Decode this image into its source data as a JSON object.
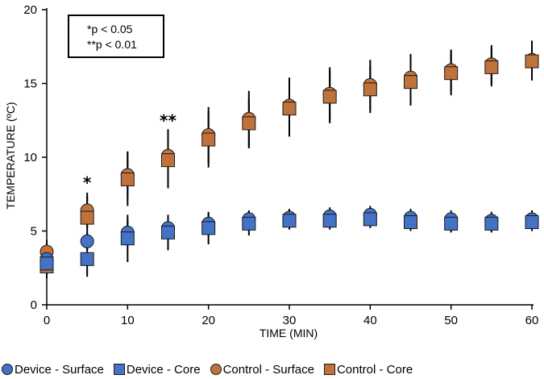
{
  "chart_data": {
    "type": "scatter",
    "xlabel": "TIME (MIN)",
    "ylabel": "TEMPERATURE (ºC)",
    "xlim": [
      0,
      60
    ],
    "ylim": [
      0,
      20
    ],
    "x_ticks": [
      "0",
      "10",
      "20",
      "30",
      "40",
      "50",
      "60"
    ],
    "y_ticks": [
      "0",
      "5",
      "10",
      "15",
      "20"
    ],
    "grid": false,
    "legend_position": "bottom",
    "x": [
      0,
      5,
      10,
      15,
      20,
      25,
      30,
      35,
      40,
      45,
      50,
      55,
      60
    ],
    "series": [
      {
        "name": "Device - Surface",
        "marker": "circle",
        "color": "#4472C4",
        "values": [
          3.1,
          4.3,
          4.9,
          5.2,
          5.5,
          5.8,
          5.9,
          6.0,
          6.1,
          5.9,
          5.8,
          5.7,
          5.8
        ],
        "error": [
          0.5,
          0.6,
          0.9,
          0.8,
          0.7,
          0.6,
          0.6,
          0.6,
          0.6,
          0.6,
          0.6,
          0.6,
          0.6
        ]
      },
      {
        "name": "Device - Core",
        "marker": "square",
        "color": "#4472C4",
        "values": [
          2.8,
          3.1,
          4.5,
          4.9,
          5.2,
          5.5,
          5.7,
          5.7,
          5.8,
          5.6,
          5.5,
          5.5,
          5.6
        ],
        "error": [
          0.7,
          1.2,
          1.6,
          1.2,
          1.1,
          0.8,
          0.6,
          0.6,
          0.6,
          0.6,
          0.6,
          0.6,
          0.6
        ]
      },
      {
        "name": "Control - Surface",
        "marker": "circle",
        "color": "#C0723D",
        "values": [
          3.6,
          6.4,
          8.8,
          10.1,
          11.5,
          12.6,
          13.5,
          14.3,
          14.9,
          15.4,
          15.9,
          16.3,
          16.6
        ],
        "error": [
          0.8,
          1.2,
          1.6,
          1.8,
          1.9,
          1.9,
          1.9,
          1.8,
          1.7,
          1.6,
          1.4,
          1.3,
          1.3
        ]
      },
      {
        "name": "Control - Core",
        "marker": "square",
        "color": "#C0723D",
        "values": [
          2.6,
          5.9,
          8.5,
          9.8,
          11.2,
          12.3,
          13.3,
          14.1,
          14.6,
          15.1,
          15.7,
          16.1,
          16.5
        ],
        "error": [
          0.8,
          1.5,
          1.8,
          1.9,
          1.9,
          1.7,
          1.9,
          1.8,
          1.6,
          1.6,
          1.5,
          1.3,
          1.3
        ]
      }
    ],
    "significance_markers": [
      {
        "x": 5,
        "y": 7.9,
        "label": "*"
      },
      {
        "x": 15,
        "y": 12.1,
        "label": "**"
      }
    ]
  },
  "annotation_box": {
    "line1": "*p < 0.05",
    "line2": "**p < 0.01"
  }
}
